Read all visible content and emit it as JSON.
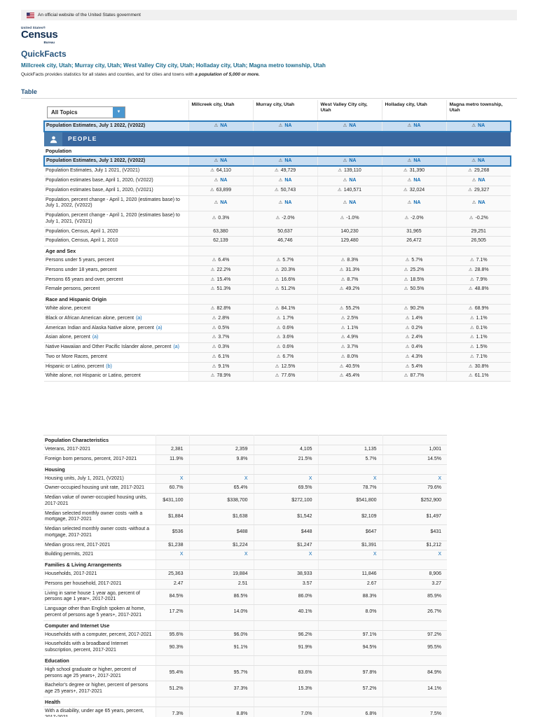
{
  "banner": {
    "text": "An official website of the United States government"
  },
  "logo": {
    "top": "United States®",
    "main": "Census",
    "bottom": "Bureau"
  },
  "header": {
    "title": "QuickFacts",
    "subtitle": "Millcreek city, Utah; Murray city, Utah; West Valley City city, Utah; Holladay city, Utah; Magna metro township, Utah",
    "description_prefix": "QuickFacts provides statistics for all states and counties, and for cities and towns with ",
    "description_emphasis": "a population of 5,000 or more."
  },
  "table_section": {
    "label": "Table"
  },
  "table": {
    "topics_dropdown": "All Topics",
    "dropdown_arrow": "▼",
    "columns": [
      "Millcreek city, Utah",
      "Murray city, Utah",
      "West Valley City city, Utah",
      "Holladay city, Utah",
      "Magna metro township, Utah"
    ],
    "block1_rows": [
      {
        "type": "highlight",
        "label": "Population Estimates, July 1 2022, (V2022)",
        "warn": true,
        "values": [
          "NA",
          "NA",
          "NA",
          "NA",
          "NA"
        ]
      },
      {
        "type": "banner",
        "label": "PEOPLE"
      },
      {
        "type": "section",
        "label": "Population"
      },
      {
        "type": "highlight",
        "label": "Population Estimates, July 1 2022, (V2022)",
        "warn": true,
        "values": [
          "NA",
          "NA",
          "NA",
          "NA",
          "NA"
        ]
      },
      {
        "type": "data",
        "label": "Population Estimates, July 1 2021, (V2021)",
        "warn": true,
        "values": [
          "64,110",
          "49,729",
          "139,110",
          "31,390",
          "29,268"
        ]
      },
      {
        "type": "data",
        "label": "Population estimates base, April 1, 2020, (V2022)",
        "warn": true,
        "values": [
          "NA",
          "NA",
          "NA",
          "NA",
          "NA"
        ]
      },
      {
        "type": "data",
        "label": "Population estimates base, April 1, 2020, (V2021)",
        "warn": true,
        "values": [
          "63,899",
          "50,743",
          "140,571",
          "32,024",
          "29,327"
        ]
      },
      {
        "type": "data",
        "label": "Population, percent change - April 1, 2020 (estimates base) to July 1, 2022, (V2022)",
        "warn": true,
        "values": [
          "NA",
          "NA",
          "NA",
          "NA",
          "NA"
        ]
      },
      {
        "type": "data",
        "label": "Population, percent change - April 1, 2020 (estimates base) to July 1, 2021, (V2021)",
        "warn": true,
        "values": [
          "0.3%",
          "-2.0%",
          "-1.0%",
          "-2.0%",
          "-0.2%"
        ]
      },
      {
        "type": "data",
        "label": "Population, Census, April 1, 2020",
        "values": [
          "63,380",
          "50,637",
          "140,230",
          "31,965",
          "29,251"
        ]
      },
      {
        "type": "data",
        "label": "Population, Census, April 1, 2010",
        "values": [
          "62,139",
          "46,746",
          "129,480",
          "26,472",
          "26,505"
        ]
      },
      {
        "type": "section",
        "label": "Age and Sex"
      },
      {
        "type": "data",
        "label": "Persons under 5 years, percent",
        "warn": true,
        "values": [
          "6.4%",
          "5.7%",
          "8.3%",
          "5.7%",
          "7.1%"
        ]
      },
      {
        "type": "data",
        "label": "Persons under 18 years, percent",
        "warn": true,
        "values": [
          "22.2%",
          "20.3%",
          "31.3%",
          "25.2%",
          "28.8%"
        ]
      },
      {
        "type": "data",
        "label": "Persons 65 years and over, percent",
        "warn": true,
        "values": [
          "15.4%",
          "16.6%",
          "8.7%",
          "18.5%",
          "7.9%"
        ]
      },
      {
        "type": "data",
        "label": "Female persons, percent",
        "warn": true,
        "values": [
          "51.3%",
          "51.2%",
          "49.2%",
          "50.5%",
          "48.8%"
        ]
      },
      {
        "type": "section",
        "label": "Race and Hispanic Origin"
      },
      {
        "type": "data",
        "label": "White alone, percent",
        "warn": true,
        "values": [
          "82.8%",
          "84.1%",
          "55.2%",
          "90.2%",
          "68.9%"
        ]
      },
      {
        "type": "data",
        "label": "Black or African American alone, percent",
        "suffix": "(a)",
        "warn": true,
        "values": [
          "2.8%",
          "1.7%",
          "2.5%",
          "1.4%",
          "1.1%"
        ]
      },
      {
        "type": "data",
        "label": "American Indian and Alaska Native alone, percent",
        "suffix": "(a)",
        "warn": true,
        "values": [
          "0.5%",
          "0.6%",
          "1.1%",
          "0.2%",
          "0.1%"
        ]
      },
      {
        "type": "data",
        "label": "Asian alone, percent",
        "suffix": "(a)",
        "warn": true,
        "values": [
          "3.7%",
          "3.6%",
          "4.9%",
          "2.4%",
          "1.1%"
        ]
      },
      {
        "type": "data",
        "label": "Native Hawaiian and Other Pacific Islander alone, percent",
        "suffix": "(a)",
        "warn": true,
        "values": [
          "0.3%",
          "0.6%",
          "3.7%",
          "0.4%",
          "1.5%"
        ]
      },
      {
        "type": "data",
        "label": "Two or More Races, percent",
        "warn": true,
        "values": [
          "6.1%",
          "6.7%",
          "8.0%",
          "4.3%",
          "7.1%"
        ]
      },
      {
        "type": "data",
        "label": "Hispanic or Latino, percent",
        "suffix": "(b)",
        "warn": true,
        "values": [
          "9.1%",
          "12.5%",
          "40.5%",
          "5.4%",
          "30.8%"
        ]
      },
      {
        "type": "data",
        "label": "White alone, not Hispanic or Latino, percent",
        "warn": true,
        "values": [
          "78.9%",
          "77.6%",
          "45.4%",
          "87.7%",
          "61.1%"
        ]
      }
    ],
    "block2_rows": [
      {
        "type": "section",
        "label": "Population Characteristics"
      },
      {
        "type": "data",
        "label": "Veterans, 2017-2021",
        "values": [
          "2,381",
          "2,359",
          "4,105",
          "1,135",
          "1,001"
        ]
      },
      {
        "type": "data",
        "label": "Foreign born persons, percent, 2017-2021",
        "values": [
          "11.9%",
          "9.8%",
          "21.5%",
          "5.7%",
          "14.5%"
        ]
      },
      {
        "type": "section",
        "label": "Housing"
      },
      {
        "type": "data",
        "label": "Housing units, July 1, 2021, (V2021)",
        "values": [
          "X",
          "X",
          "X",
          "X",
          "X"
        ]
      },
      {
        "type": "data",
        "label": "Owner-occupied housing unit rate, 2017-2021",
        "values": [
          "60.7%",
          "65.4%",
          "69.5%",
          "78.7%",
          "79.6%"
        ]
      },
      {
        "type": "data",
        "label": "Median value of owner-occupied housing units, 2017-2021",
        "values": [
          "$431,100",
          "$338,700",
          "$272,100",
          "$541,800",
          "$252,900"
        ]
      },
      {
        "type": "data",
        "label": "Median selected monthly owner costs -with a mortgage, 2017-2021",
        "values": [
          "$1,884",
          "$1,638",
          "$1,542",
          "$2,109",
          "$1,497"
        ]
      },
      {
        "type": "data",
        "label": "Median selected monthly owner costs -without a mortgage, 2017-2021",
        "values": [
          "$536",
          "$488",
          "$448",
          "$647",
          "$431"
        ]
      },
      {
        "type": "data",
        "label": "Median gross rent, 2017-2021",
        "values": [
          "$1,238",
          "$1,224",
          "$1,247",
          "$1,391",
          "$1,212"
        ]
      },
      {
        "type": "data",
        "label": "Building permits, 2021",
        "values": [
          "X",
          "X",
          "X",
          "X",
          "X"
        ]
      },
      {
        "type": "section",
        "label": "Families & Living Arrangements"
      },
      {
        "type": "data",
        "label": "Households, 2017-2021",
        "values": [
          "25,363",
          "19,884",
          "38,933",
          "11,846",
          "8,906"
        ]
      },
      {
        "type": "data",
        "label": "Persons per household, 2017-2021",
        "values": [
          "2.47",
          "2.51",
          "3.57",
          "2.67",
          "3.27"
        ]
      },
      {
        "type": "data",
        "label": "Living in same house 1 year ago, percent of persons age 1 year+, 2017-2021",
        "values": [
          "84.5%",
          "86.5%",
          "86.0%",
          "88.3%",
          "85.9%"
        ]
      },
      {
        "type": "data",
        "label": "Language other than English spoken at home, percent of persons age 5 years+, 2017-2021",
        "values": [
          "17.2%",
          "14.0%",
          "40.1%",
          "8.0%",
          "26.7%"
        ]
      },
      {
        "type": "section",
        "label": "Computer and Internet Use"
      },
      {
        "type": "data",
        "label": "Households with a computer, percent, 2017-2021",
        "values": [
          "95.6%",
          "96.0%",
          "96.2%",
          "97.1%",
          "97.2%"
        ]
      },
      {
        "type": "data",
        "label": "Households with a broadband Internet subscription, percent, 2017-2021",
        "values": [
          "90.3%",
          "91.1%",
          "91.9%",
          "94.5%",
          "95.5%"
        ]
      },
      {
        "type": "section",
        "label": "Education"
      },
      {
        "type": "data",
        "label": "High school graduate or higher, percent of persons age 25 years+, 2017-2021",
        "values": [
          "95.4%",
          "95.7%",
          "83.6%",
          "97.8%",
          "84.9%"
        ]
      },
      {
        "type": "data",
        "label": "Bachelor's degree or higher, percent of persons age 25 years+, 2017-2021",
        "values": [
          "51.2%",
          "37.3%",
          "15.3%",
          "57.2%",
          "14.1%"
        ]
      },
      {
        "type": "section",
        "label": "Health"
      },
      {
        "type": "data",
        "label": "With a disability, under age 65 years, percent, 2017-2021",
        "values": [
          "7.3%",
          "8.8%",
          "7.0%",
          "6.8%",
          "7.5%"
        ]
      },
      {
        "type": "data",
        "label": "Persons without health insurance, under age 65 years, percent",
        "warn": true,
        "values": [
          "8.3%",
          "11.6%",
          "20.0%",
          "5.5%",
          "13.6%"
        ]
      }
    ]
  }
}
